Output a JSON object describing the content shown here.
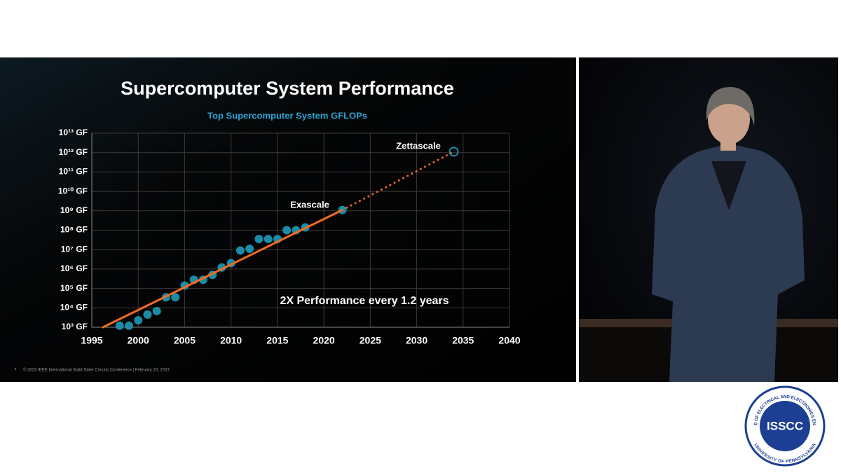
{
  "chart_data": {
    "type": "scatter",
    "title": "Supercomputer System Performance",
    "subtitle": "Top Supercomputer System GFLOPs",
    "annotations": [
      "Exascale",
      "Zettascale",
      "2X Performance every 1.2 years"
    ],
    "xlim": [
      1995,
      2040
    ],
    "xticks": [
      1995,
      2000,
      2005,
      2010,
      2015,
      2020,
      2025,
      2030,
      2035,
      2040
    ],
    "ylim": [
      1000,
      10000000000000
    ],
    "yscale": "log",
    "yticks": [
      {
        "value": 1000,
        "label": "10³ GF"
      },
      {
        "value": 10000,
        "label": "10⁴ GF"
      },
      {
        "value": 100000,
        "label": "10⁵ GF"
      },
      {
        "value": 1000000,
        "label": "10⁶ GF"
      },
      {
        "value": 10000000,
        "label": "10⁷ GF"
      },
      {
        "value": 100000000,
        "label": "10⁸ GF"
      },
      {
        "value": 1000000000,
        "label": "10⁹ GF"
      },
      {
        "value": 10000000000,
        "label": "10¹⁰ GF"
      },
      {
        "value": 100000000000,
        "label": "10¹¹ GF"
      },
      {
        "value": 1000000000000,
        "label": "10¹² GF"
      },
      {
        "value": 10000000000000,
        "label": "10¹³ GF"
      }
    ],
    "grid": true,
    "series": [
      {
        "color": "#1b8ca6",
        "marker": "circle",
        "x": [
          1998,
          1999,
          2000,
          2001,
          2002,
          2003,
          2004,
          2005,
          2006,
          2007,
          2008,
          2009,
          2010,
          2011,
          2012,
          2013,
          2014,
          2015,
          2016,
          2017,
          2018,
          2022
        ],
        "values": [
          1200,
          1200,
          2300,
          4500,
          6800,
          35000,
          35000,
          140000,
          280000,
          280000,
          500000,
          1200000,
          2000000,
          9000000,
          11000000,
          35000000,
          35000000,
          35000000,
          100000000,
          100000000,
          140000000,
          1100000000
        ]
      },
      {
        "color": "#f26a21",
        "line": "solid",
        "x": [
          1996.2,
          2022
        ],
        "values": [
          1000,
          1100000000
        ]
      },
      {
        "color": "#f26a21",
        "line": "dotted",
        "x": [
          2022,
          2034
        ],
        "values": [
          1100000000,
          1100000000000
        ]
      },
      {
        "color": "#1b8ca6",
        "marker": "open-circle",
        "x": [
          2034
        ],
        "values": [
          1100000000000
        ]
      }
    ]
  },
  "footer": {
    "page": "7",
    "text": "© 2023 IEEE International Solid-State Circuits Conference  |  February 20, 2023"
  },
  "logo": {
    "name": "ISSCC",
    "ring_top": "INSTITUTE OF ELECTRICAL AND ELECTRONICS ENGINEERS",
    "ring_bottom": "UNIVERSITY OF PENNSYLVANIA"
  }
}
